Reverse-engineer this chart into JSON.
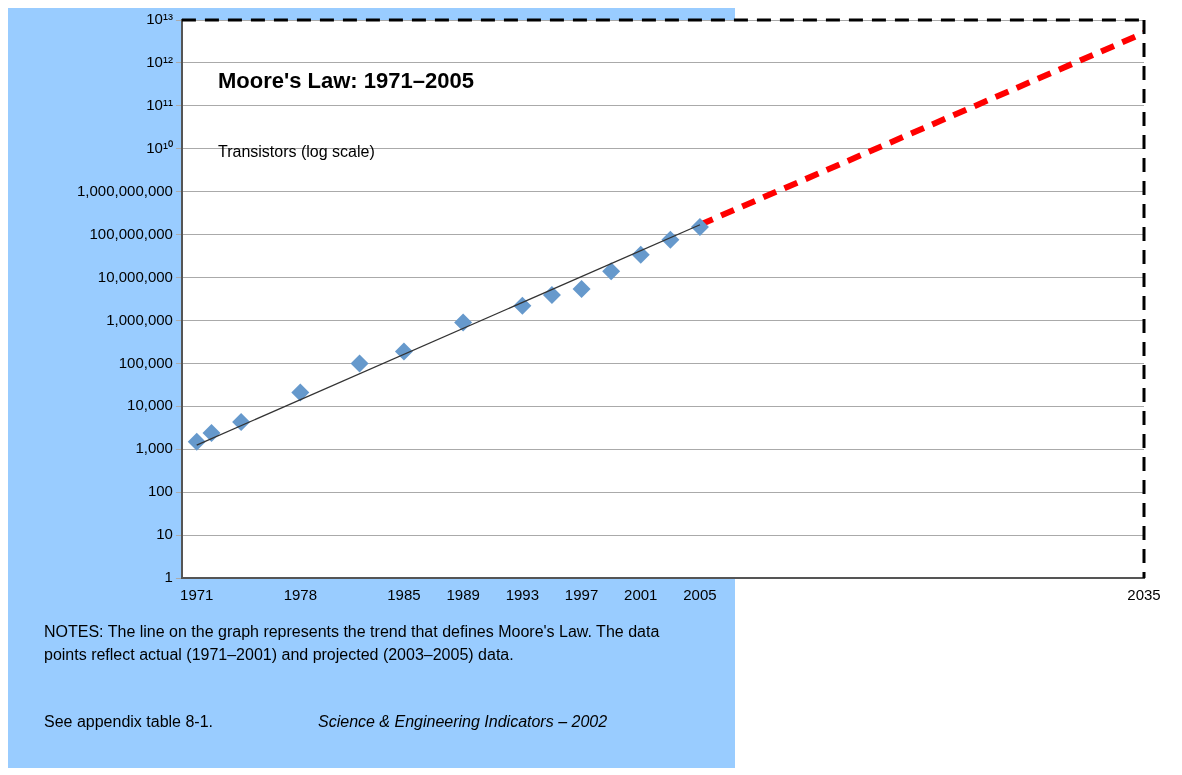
{
  "chart_data": {
    "type": "scatter",
    "title": "Moore's Law: 1971–2005",
    "ylabel": "Transistors (log scale)",
    "x": [
      1971,
      1972,
      1974,
      1978,
      1982,
      1985,
      1989,
      1993,
      1995,
      1997,
      1999,
      2001,
      2003,
      2005
    ],
    "series": [
      {
        "type": "scatter",
        "color": "#6699cc",
        "marker": "diamond",
        "values": [
          1500,
          2400,
          4300,
          21000,
          100000,
          190000,
          900000,
          2200000,
          3900000,
          5400000,
          14000000,
          34000000,
          76000000,
          150000000
        ]
      },
      {
        "type": "line",
        "color": "#333333",
        "marker": "none",
        "line_style": "solid",
        "x": [
          1971,
          2005
        ],
        "values": [
          1250,
          170000000
        ]
      },
      {
        "type": "line",
        "color": "#ff0000",
        "marker": "none",
        "line_style": "dashed",
        "x": [
          2005,
          2035
        ],
        "values": [
          170000000,
          5000000000000
        ]
      }
    ],
    "log": "y",
    "xlim": [
      1970,
      2035
    ],
    "ylim": [
      1,
      10000000000000
    ],
    "xticks": [
      1971,
      1978,
      1985,
      1989,
      1993,
      1997,
      2001,
      2005,
      2035
    ],
    "yticks": [
      {
        "value": 1,
        "label": "1"
      },
      {
        "value": 10,
        "label": "10"
      },
      {
        "value": 100,
        "label": "100"
      },
      {
        "value": 1000,
        "label": "1,000"
      },
      {
        "value": 10000,
        "label": "10,000"
      },
      {
        "value": 100000,
        "label": "100,000"
      },
      {
        "value": 1000000,
        "label": "1,000,000"
      },
      {
        "value": 10000000,
        "label": "10,000,000"
      },
      {
        "value": 100000000,
        "label": "100,000,000"
      },
      {
        "value": 1000000000,
        "label": "1,000,000,000"
      },
      {
        "value": 10000000000,
        "label": "10¹⁰"
      },
      {
        "value": 100000000000,
        "label": "10¹¹"
      },
      {
        "value": 1000000000000,
        "label": "10¹²"
      },
      {
        "value": 10000000000000,
        "label": "10¹³"
      }
    ],
    "grid": "y",
    "legend": false,
    "ref_lines": [
      {
        "axis": "y",
        "value": 10000000000000,
        "color": "#000000",
        "line_style": "dashed"
      },
      {
        "axis": "x",
        "value": 2035,
        "color": "#000000",
        "line_style": "dashed"
      }
    ],
    "annotations": [
      "NOTES: The line on the graph represents the trend that defines Moore's Law. The data points reflect actual (1971–2001) and projected (2003–2005) data.",
      "See appendix table 8-1.",
      "Science & Engineering Indicators – 2002"
    ]
  }
}
